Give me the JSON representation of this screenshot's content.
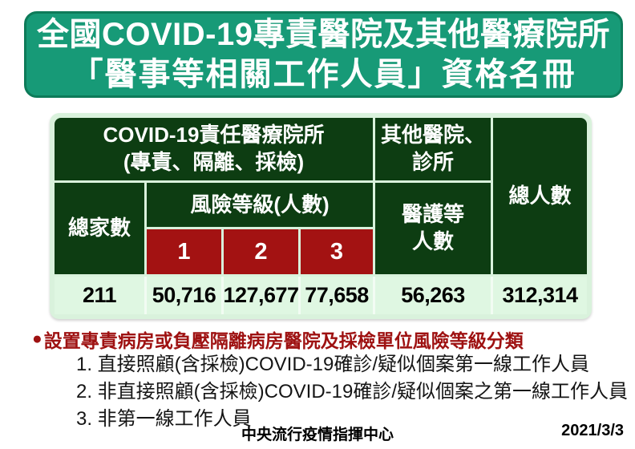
{
  "banner": {
    "line1": "全國COVID-19專責醫院及其他醫療院所",
    "line2": "「醫事等相關工作人員」資格名冊"
  },
  "table": {
    "header": {
      "covid_group_line1": "COVID-19責任醫療院所",
      "covid_group_line2": "(專責、隔離、採檢)",
      "other_line1": "其他醫院、",
      "other_line2": "診所",
      "total_people": "總人數",
      "total_hospitals": "總家數",
      "risk_level": "風險等級(人數)",
      "risk_levels": [
        "1",
        "2",
        "3"
      ],
      "medical_line1": "醫護等",
      "medical_line2": "人數"
    },
    "row": {
      "total_hospitals": "211",
      "risk1": "50,716",
      "risk2": "127,677",
      "risk3": "77,658",
      "medical": "56,263",
      "total": "312,314"
    }
  },
  "notes": {
    "bullet": "●",
    "heading": "設置專責病房或負壓隔離病房醫院及採檢單位風險等級分類",
    "items": [
      "1. 直接照顧(含採檢)COVID-19確診/疑似個案第一線工作人員",
      "2. 非直接照顧(含採檢)COVID-19確診/疑似個案之第一線工作人員",
      "3. 非第一線工作人員"
    ]
  },
  "footer": {
    "org": "中央流行疫情指揮中心",
    "date": "2021/3/3"
  },
  "colors": {
    "banner_fill": "#179a77",
    "banner_border": "#0d7b59",
    "table_header_green": "#0d3d12",
    "table_light_green": "#d9f2dc",
    "data_cell_green": "#dff7e2",
    "risk_cell_red": "#a31212",
    "note_red": "#9e1111"
  }
}
